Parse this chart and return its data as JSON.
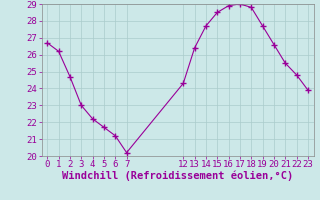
{
  "x": [
    0,
    1,
    2,
    3,
    4,
    5,
    6,
    7,
    12,
    13,
    14,
    15,
    16,
    17,
    18,
    19,
    20,
    21,
    22,
    23
  ],
  "y": [
    26.7,
    26.2,
    24.7,
    23.0,
    22.2,
    21.7,
    21.2,
    20.2,
    24.3,
    26.4,
    27.7,
    28.5,
    28.9,
    29.0,
    28.8,
    27.7,
    26.6,
    25.5,
    24.8,
    23.9
  ],
  "line_color": "#990099",
  "marker": "P",
  "marker_size": 3,
  "bg_color": "#cce8e8",
  "grid_color": "#aacccc",
  "xlabel": "Windchill (Refroidissement éolien,°C)",
  "xlabel_color": "#990099",
  "tick_color": "#990099",
  "ylim": [
    20,
    29
  ],
  "yticks": [
    20,
    21,
    22,
    23,
    24,
    25,
    26,
    27,
    28,
    29
  ],
  "xticks": [
    0,
    1,
    2,
    3,
    4,
    5,
    6,
    7,
    12,
    13,
    14,
    15,
    16,
    17,
    18,
    19,
    20,
    21,
    22,
    23
  ],
  "xlim": [
    -0.5,
    23.5
  ],
  "tick_fontsize": 6.5,
  "xlabel_fontsize": 7.5
}
